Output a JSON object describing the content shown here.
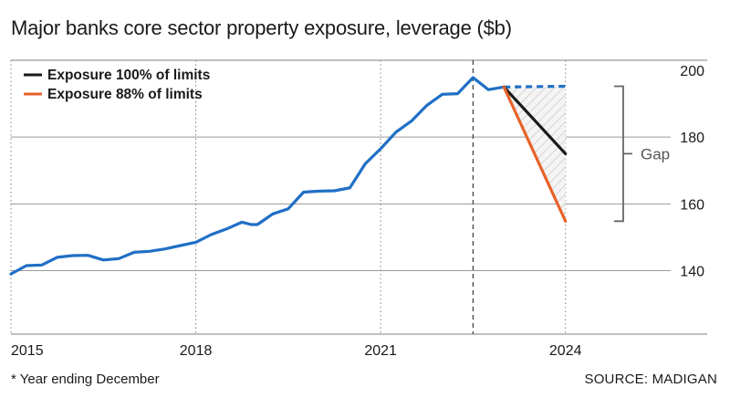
{
  "title": "Major banks core sector property exposure, leverage ($b)",
  "footnote": "* Year ending December",
  "source": "SOURCE: MADIGAN",
  "colors": {
    "history": "#1f6fc5",
    "exposure_100": "#1a1a1a",
    "exposure_88": "#e8622a",
    "grid": "#9a9a9a",
    "gap_bracket": "#666666"
  },
  "chart_data": {
    "type": "line",
    "title": "Major banks core sector property exposure, leverage ($b)",
    "xlabel": "",
    "ylabel": "",
    "xlim": [
      2015,
      2026.3
    ],
    "ylim": [
      121,
      203
    ],
    "x_ticks": [
      2015,
      2018,
      2021,
      2024
    ],
    "y_ticks": [
      140,
      160,
      180,
      200
    ],
    "legend": [
      "Exposure 100% of limits",
      "Exposure 88% of limits"
    ],
    "legend_position": "top-left",
    "grid": "horizontal",
    "projection_start": 2022.5,
    "gap_label": "Gap",
    "series": [
      {
        "name": "",
        "style": "solid",
        "color": "#1f6fc5",
        "points": [
          [
            2015.0,
            139.0
          ],
          [
            2015.25,
            141.5
          ],
          [
            2015.5,
            141.7
          ],
          [
            2015.75,
            144.0
          ],
          [
            2016.0,
            144.5
          ],
          [
            2016.25,
            144.6
          ],
          [
            2016.5,
            143.2
          ],
          [
            2016.75,
            143.6
          ],
          [
            2017.0,
            145.5
          ],
          [
            2017.25,
            145.8
          ],
          [
            2017.5,
            146.5
          ],
          [
            2017.75,
            147.5
          ],
          [
            2018.0,
            148.5
          ],
          [
            2018.25,
            150.8
          ],
          [
            2018.5,
            152.5
          ],
          [
            2018.75,
            154.5
          ],
          [
            2018.9,
            153.8
          ],
          [
            2019.0,
            153.8
          ],
          [
            2019.25,
            157.0
          ],
          [
            2019.5,
            158.5
          ],
          [
            2019.75,
            163.5
          ],
          [
            2020.0,
            163.8
          ],
          [
            2020.25,
            163.9
          ],
          [
            2020.5,
            164.8
          ],
          [
            2020.75,
            172.0
          ],
          [
            2021.0,
            176.5
          ],
          [
            2021.25,
            181.5
          ],
          [
            2021.5,
            184.8
          ],
          [
            2021.75,
            189.5
          ],
          [
            2022.0,
            192.8
          ],
          [
            2022.25,
            193.0
          ],
          [
            2022.5,
            197.8
          ],
          [
            2022.75,
            194.2
          ],
          [
            2023.0,
            195.0
          ]
        ]
      },
      {
        "name": "",
        "style": "dashed",
        "color": "#1f6fc5",
        "points": [
          [
            2023.0,
            195.0
          ],
          [
            2024.0,
            195.2
          ]
        ]
      },
      {
        "name": "Exposure 100% of limits",
        "style": "solid",
        "color": "#1a1a1a",
        "points": [
          [
            2023.0,
            195.0
          ],
          [
            2024.0,
            175.0
          ]
        ]
      },
      {
        "name": "Exposure 88% of limits",
        "style": "solid",
        "color": "#e8622a",
        "points": [
          [
            2023.0,
            195.0
          ],
          [
            2024.0,
            154.8
          ]
        ]
      }
    ]
  }
}
